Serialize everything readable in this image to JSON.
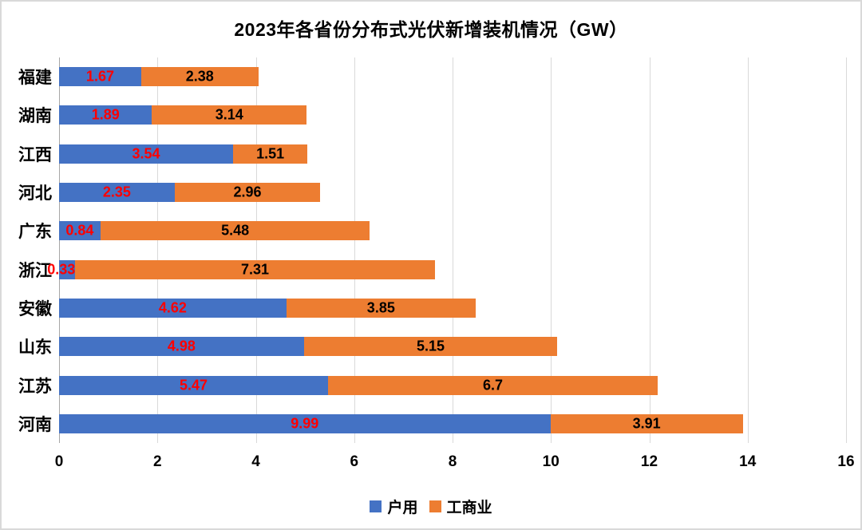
{
  "title": "2023年各省份分布式光伏新增装机情况（GW）",
  "chart_data": {
    "type": "bar",
    "orientation": "horizontal-stacked",
    "title": "2023年各省份分布式光伏新增装机情况（GW）",
    "categories": [
      "福建",
      "湖南",
      "江西",
      "河北",
      "广东",
      "浙江",
      "安徽",
      "山东",
      "江苏",
      "河南"
    ],
    "series": [
      {
        "name": "户用",
        "color": "#4472C4",
        "label_color": "#FF0000",
        "values": [
          1.67,
          1.89,
          3.54,
          2.35,
          0.84,
          0.33,
          4.62,
          4.98,
          5.47,
          9.99
        ]
      },
      {
        "name": "工商业",
        "color": "#ED7D31",
        "label_color": "#000000",
        "values": [
          2.38,
          3.14,
          1.51,
          2.96,
          5.48,
          7.31,
          3.85,
          5.15,
          6.7,
          3.91
        ]
      }
    ],
    "xlabel": "",
    "ylabel": "",
    "xlim": [
      0,
      16
    ],
    "x_ticks": [
      0,
      2,
      4,
      6,
      8,
      10,
      12,
      14,
      16
    ],
    "grid": true,
    "gridline_color": "#d9d9d9",
    "axis_line_color": "#a6a6a6",
    "legend_position": "bottom"
  }
}
